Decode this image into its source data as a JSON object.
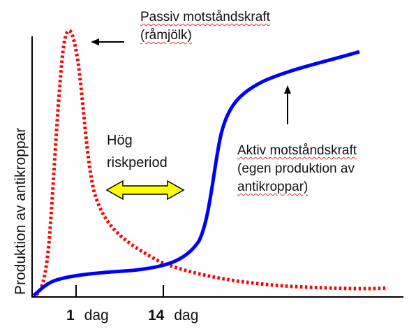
{
  "chart_data": {
    "type": "line",
    "ylabel": "Produktion av antikroppar",
    "xticks": [
      {
        "value": 1,
        "number": "1",
        "unit": "dag"
      },
      {
        "value": 14,
        "number": "14",
        "unit": "dag"
      }
    ],
    "series": [
      {
        "label_lines": [
          "Passiv motståndskraft",
          "(råmjölk)"
        ],
        "style": "dotted",
        "color": "#ff0000"
      },
      {
        "label_lines": [
          "Aktiv motståndskraft",
          "(egen produktion av",
          "antikroppar)"
        ],
        "style": "solid",
        "color": "#0000ff"
      }
    ],
    "annotations": [
      {
        "text_lines": [
          "Hög",
          "riskperiod"
        ],
        "marker": "double-arrow",
        "marker_color": "#ffff00"
      }
    ],
    "grid": false,
    "legend": "none"
  }
}
